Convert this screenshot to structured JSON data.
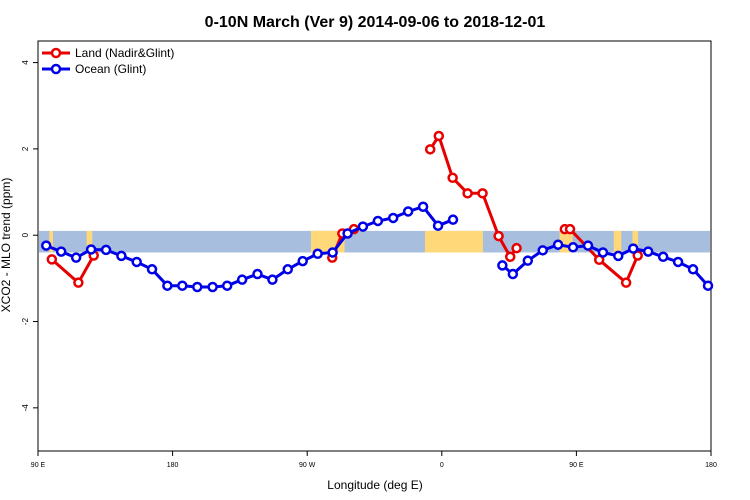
{
  "chart_data": {
    "type": "line",
    "title": "0-10N March (Ver 9)   2014-09-06 to 2018-12-01",
    "xlabel": "Longitude (deg E)",
    "ylabel": "XCO2 - MLO trend (ppm)",
    "xlim": [
      30,
      210
    ],
    "ylim": [
      -5,
      4.5
    ],
    "x_ticks": [
      {
        "value": 30,
        "label": "90 E"
      },
      {
        "value": 66,
        "label": "180"
      },
      {
        "value": 102,
        "label": "90 W"
      },
      {
        "value": 138,
        "label": "0"
      },
      {
        "value": 174,
        "label": "90 E"
      },
      {
        "value": 210,
        "label": "180"
      }
    ],
    "y_ticks": [
      -4,
      -2,
      0,
      2,
      4
    ],
    "grid": false,
    "legend_position": "top-left",
    "band": {
      "y_min": -0.4,
      "y_max": 0.1,
      "ocean_color": "#a8bedf",
      "land_color": "#ffd87a"
    },
    "land_segments": [
      [
        33,
        34
      ],
      [
        43,
        44.5
      ],
      [
        103,
        112
      ],
      [
        133.5,
        149
      ],
      [
        169.5,
        173
      ],
      [
        184,
        186
      ],
      [
        189,
        190.5
      ]
    ],
    "series": [
      {
        "name": "Land (Nadir&Glint)",
        "color": "#e80000",
        "segments": [
          [
            [
              33.7,
              -0.56
            ],
            [
              40.8,
              -1.1
            ],
            [
              44.9,
              -0.47
            ]
          ],
          [
            [
              108.7,
              -0.52
            ],
            [
              111.4,
              0.04
            ],
            [
              114.5,
              0.14
            ]
          ],
          [
            [
              134.9,
              1.99
            ],
            [
              137.2,
              2.3
            ],
            [
              140.9,
              1.33
            ],
            [
              144.9,
              0.97
            ],
            [
              148.9,
              0.97
            ],
            [
              153.2,
              -0.02
            ],
            [
              156.3,
              -0.5
            ],
            [
              158.0,
              -0.3
            ]
          ],
          [
            [
              170.9,
              0.14
            ],
            [
              172.3,
              0.14
            ],
            [
              180.1,
              -0.57
            ],
            [
              187.3,
              -1.1
            ],
            [
              190.4,
              -0.47
            ]
          ]
        ]
      },
      {
        "name": "Ocean (Glint)",
        "color": "#0000e8",
        "segments": [
          [
            [
              32.2,
              -0.24
            ],
            [
              36.2,
              -0.38
            ],
            [
              40.2,
              -0.52
            ],
            [
              44.2,
              -0.33
            ],
            [
              48.2,
              -0.34
            ],
            [
              52.3,
              -0.48
            ],
            [
              56.4,
              -0.62
            ],
            [
              60.5,
              -0.79
            ],
            [
              64.6,
              -1.17
            ],
            [
              68.6,
              -1.17
            ],
            [
              72.6,
              -1.2
            ],
            [
              76.7,
              -1.2
            ],
            [
              80.6,
              -1.17
            ],
            [
              84.6,
              -1.03
            ],
            [
              88.7,
              -0.9
            ],
            [
              92.7,
              -1.03
            ],
            [
              96.8,
              -0.79
            ],
            [
              100.8,
              -0.6
            ],
            [
              104.8,
              -0.43
            ],
            [
              108.8,
              -0.4
            ],
            [
              112.8,
              0.04
            ],
            [
              116.9,
              0.2
            ],
            [
              120.9,
              0.33
            ],
            [
              125.0,
              0.4
            ],
            [
              129.0,
              0.55
            ],
            [
              133.0,
              0.66
            ],
            [
              137.0,
              0.22
            ],
            [
              141.0,
              0.36
            ]
          ],
          [
            [
              154.2,
              -0.7
            ],
            [
              157.0,
              -0.9
            ],
            [
              161.0,
              -0.59
            ],
            [
              165.0,
              -0.35
            ],
            [
              169.1,
              -0.22
            ],
            [
              173.1,
              -0.28
            ],
            [
              177.1,
              -0.24
            ],
            [
              181.1,
              -0.4
            ],
            [
              185.2,
              -0.48
            ],
            [
              189.2,
              -0.31
            ],
            [
              193.2,
              -0.38
            ],
            [
              197.2,
              -0.5
            ],
            [
              201.2,
              -0.62
            ],
            [
              205.2,
              -0.79
            ],
            [
              209.2,
              -1.17
            ]
          ]
        ]
      }
    ]
  }
}
